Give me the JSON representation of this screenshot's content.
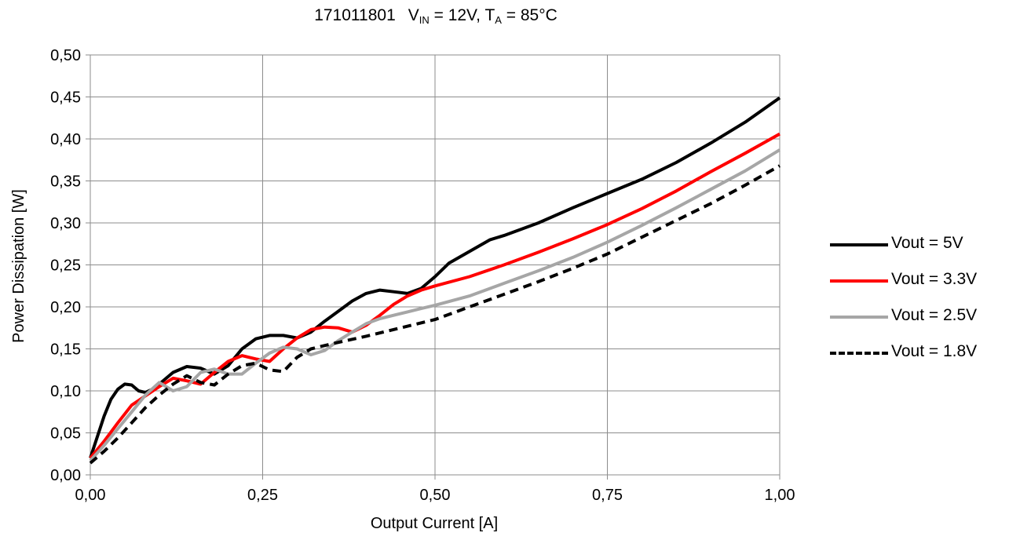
{
  "chart_data": {
    "type": "line",
    "title": {
      "part_no": "171011801",
      "vin_main": "V",
      "vin_sub": "IN",
      "vin_val": " = 12V, ",
      "ta_main": "T",
      "ta_sub": "A",
      "ta_val": " = 85°C"
    },
    "xlabel": "Output Current [A]",
    "ylabel": "Power Dissipation [W]",
    "xlim": [
      0,
      1
    ],
    "ylim": [
      0,
      0.5
    ],
    "x_ticks": [
      {
        "value": 0,
        "label": "0,00"
      },
      {
        "value": 0.25,
        "label": "0,25"
      },
      {
        "value": 0.5,
        "label": "0,50"
      },
      {
        "value": 0.75,
        "label": "0,75"
      },
      {
        "value": 1,
        "label": "1,00"
      }
    ],
    "y_ticks": [
      {
        "value": 0,
        "label": "0,00"
      },
      {
        "value": 0.05,
        "label": "0,05"
      },
      {
        "value": 0.1,
        "label": "0,10"
      },
      {
        "value": 0.15,
        "label": "0,15"
      },
      {
        "value": 0.2,
        "label": "0,20"
      },
      {
        "value": 0.25,
        "label": "0,25"
      },
      {
        "value": 0.3,
        "label": "0,30"
      },
      {
        "value": 0.35,
        "label": "0,35"
      },
      {
        "value": 0.4,
        "label": "0,40"
      },
      {
        "value": 0.45,
        "label": "0,45"
      },
      {
        "value": 0.5,
        "label": "0,50"
      }
    ],
    "grid": true,
    "legend_position": "right",
    "series": [
      {
        "name": "Vout = 5V",
        "color": "#000000",
        "dash": false,
        "x": [
          0,
          0.01,
          0.02,
          0.03,
          0.04,
          0.05,
          0.06,
          0.07,
          0.08,
          0.09,
          0.1,
          0.12,
          0.14,
          0.16,
          0.18,
          0.2,
          0.22,
          0.24,
          0.26,
          0.28,
          0.3,
          0.32,
          0.34,
          0.36,
          0.38,
          0.4,
          0.42,
          0.44,
          0.46,
          0.48,
          0.5,
          0.52,
          0.55,
          0.58,
          0.6,
          0.65,
          0.7,
          0.75,
          0.8,
          0.85,
          0.9,
          0.95,
          1
        ],
        "y": [
          0.02,
          0.045,
          0.07,
          0.09,
          0.102,
          0.108,
          0.107,
          0.1,
          0.098,
          0.102,
          0.108,
          0.122,
          0.129,
          0.127,
          0.12,
          0.13,
          0.15,
          0.162,
          0.166,
          0.166,
          0.163,
          0.17,
          0.183,
          0.195,
          0.207,
          0.216,
          0.22,
          0.218,
          0.216,
          0.222,
          0.236,
          0.252,
          0.266,
          0.28,
          0.285,
          0.3,
          0.318,
          0.335,
          0.352,
          0.372,
          0.395,
          0.42,
          0.449
        ]
      },
      {
        "name": "Vout = 3.3V",
        "color": "#ff0000",
        "dash": false,
        "x": [
          0,
          0.02,
          0.04,
          0.06,
          0.08,
          0.1,
          0.12,
          0.14,
          0.16,
          0.18,
          0.2,
          0.22,
          0.24,
          0.26,
          0.28,
          0.3,
          0.32,
          0.34,
          0.36,
          0.38,
          0.4,
          0.42,
          0.44,
          0.46,
          0.48,
          0.5,
          0.55,
          0.6,
          0.65,
          0.7,
          0.75,
          0.8,
          0.85,
          0.9,
          0.95,
          1
        ],
        "y": [
          0.02,
          0.04,
          0.062,
          0.083,
          0.094,
          0.105,
          0.115,
          0.112,
          0.108,
          0.122,
          0.135,
          0.142,
          0.138,
          0.135,
          0.15,
          0.163,
          0.173,
          0.176,
          0.175,
          0.17,
          0.178,
          0.19,
          0.203,
          0.213,
          0.22,
          0.225,
          0.236,
          0.25,
          0.265,
          0.281,
          0.298,
          0.317,
          0.338,
          0.361,
          0.383,
          0.406
        ]
      },
      {
        "name": "Vout = 2.5V",
        "color": "#a6a6a6",
        "dash": false,
        "x": [
          0,
          0.02,
          0.04,
          0.06,
          0.08,
          0.1,
          0.12,
          0.14,
          0.16,
          0.18,
          0.2,
          0.22,
          0.24,
          0.26,
          0.28,
          0.3,
          0.32,
          0.34,
          0.36,
          0.38,
          0.4,
          0.42,
          0.44,
          0.46,
          0.48,
          0.5,
          0.55,
          0.6,
          0.65,
          0.7,
          0.75,
          0.8,
          0.85,
          0.9,
          0.95,
          1
        ],
        "y": [
          0.017,
          0.035,
          0.055,
          0.075,
          0.095,
          0.11,
          0.1,
          0.105,
          0.122,
          0.126,
          0.12,
          0.12,
          0.133,
          0.145,
          0.152,
          0.15,
          0.143,
          0.148,
          0.16,
          0.17,
          0.18,
          0.186,
          0.19,
          0.194,
          0.198,
          0.202,
          0.213,
          0.228,
          0.243,
          0.259,
          0.277,
          0.297,
          0.318,
          0.34,
          0.362,
          0.387
        ]
      },
      {
        "name": "Vout = 1.8V",
        "color": "#000000",
        "dash": true,
        "x": [
          0,
          0.02,
          0.04,
          0.06,
          0.08,
          0.1,
          0.12,
          0.14,
          0.16,
          0.18,
          0.2,
          0.22,
          0.24,
          0.26,
          0.28,
          0.3,
          0.32,
          0.35,
          0.4,
          0.45,
          0.5,
          0.55,
          0.6,
          0.65,
          0.7,
          0.75,
          0.8,
          0.85,
          0.9,
          0.95,
          1
        ],
        "y": [
          0.014,
          0.028,
          0.044,
          0.062,
          0.08,
          0.095,
          0.108,
          0.118,
          0.11,
          0.107,
          0.12,
          0.13,
          0.133,
          0.125,
          0.123,
          0.14,
          0.15,
          0.156,
          0.165,
          0.175,
          0.185,
          0.2,
          0.215,
          0.23,
          0.246,
          0.263,
          0.283,
          0.303,
          0.323,
          0.345,
          0.368
        ]
      }
    ]
  }
}
